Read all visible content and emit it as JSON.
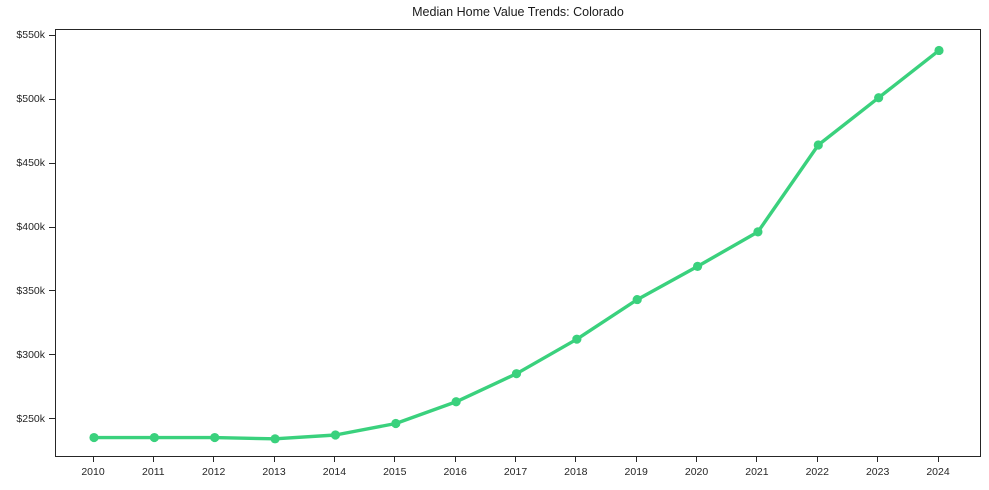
{
  "chart": {
    "title": "Median Home Value Trends: Colorado"
  },
  "chart_data": {
    "type": "line",
    "title": "Median Home Value Trends: Colorado",
    "x": [
      2010,
      2011,
      2012,
      2013,
      2014,
      2015,
      2016,
      2017,
      2018,
      2019,
      2020,
      2021,
      2022,
      2023,
      2024
    ],
    "values": [
      236,
      236,
      236,
      235,
      238,
      247,
      264,
      286,
      313,
      344,
      370,
      397,
      465,
      502,
      539
    ],
    "unit": "USD thousands",
    "series_name": "Median home value",
    "xlabel": "",
    "ylabel": "",
    "x_tick_labels": [
      "2010",
      "2011",
      "2012",
      "2013",
      "2014",
      "2015",
      "2016",
      "2017",
      "2018",
      "2019",
      "2020",
      "2021",
      "2022",
      "2023",
      "2024"
    ],
    "y_tick_values": [
      250,
      300,
      350,
      400,
      450,
      500,
      550
    ],
    "y_tick_labels": [
      "$250k",
      "$300k",
      "$350k",
      "$400k",
      "$450k",
      "$500k",
      "$550k"
    ],
    "ylim": [
      220,
      555
    ],
    "grid": false,
    "legend": "none",
    "line_color": "#3ad17d",
    "marker": "circle",
    "background_color": "#ffffff",
    "text_color": "#262626"
  }
}
